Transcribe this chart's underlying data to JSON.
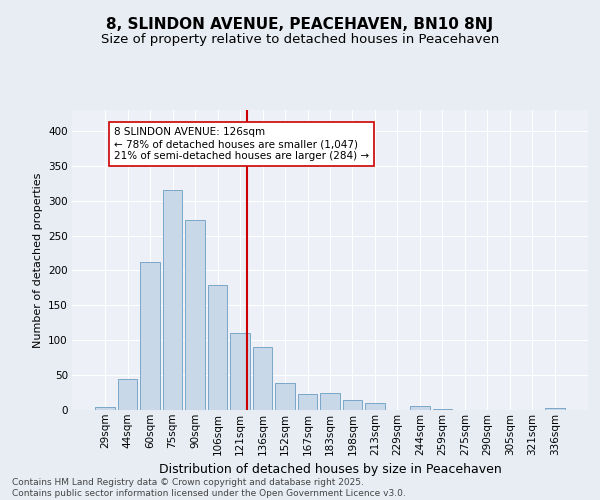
{
  "title": "8, SLINDON AVENUE, PEACEHAVEN, BN10 8NJ",
  "subtitle": "Size of property relative to detached houses in Peacehaven",
  "xlabel": "Distribution of detached houses by size in Peacehaven",
  "ylabel": "Number of detached properties",
  "categories": [
    "29sqm",
    "44sqm",
    "60sqm",
    "75sqm",
    "90sqm",
    "106sqm",
    "121sqm",
    "136sqm",
    "152sqm",
    "167sqm",
    "183sqm",
    "198sqm",
    "213sqm",
    "229sqm",
    "244sqm",
    "259sqm",
    "275sqm",
    "290sqm",
    "305sqm",
    "321sqm",
    "336sqm"
  ],
  "values": [
    5,
    44,
    212,
    315,
    272,
    179,
    110,
    90,
    38,
    23,
    25,
    14,
    10,
    0,
    6,
    1,
    0,
    0,
    0,
    0,
    3
  ],
  "bar_color": "#c8d8e8",
  "bar_edge_color": "#7aa8c8",
  "vline_x_index": 6.33,
  "vline_color": "#cc0000",
  "annotation_text": "8 SLINDON AVENUE: 126sqm\n← 78% of detached houses are smaller (1,047)\n21% of semi-detached houses are larger (284) →",
  "annotation_box_color": "#ffffff",
  "annotation_box_edge": "#cc0000",
  "ylim": [
    0,
    430
  ],
  "yticks": [
    0,
    50,
    100,
    150,
    200,
    250,
    300,
    350,
    400
  ],
  "bg_color": "#e8edf4",
  "plot_bg_color": "#edf1f7",
  "footer": "Contains HM Land Registry data © Crown copyright and database right 2025.\nContains public sector information licensed under the Open Government Licence v3.0.",
  "title_fontsize": 11,
  "subtitle_fontsize": 9.5,
  "xlabel_fontsize": 9,
  "ylabel_fontsize": 8,
  "tick_fontsize": 7.5,
  "footer_fontsize": 6.5,
  "ann_fontsize": 7.5
}
